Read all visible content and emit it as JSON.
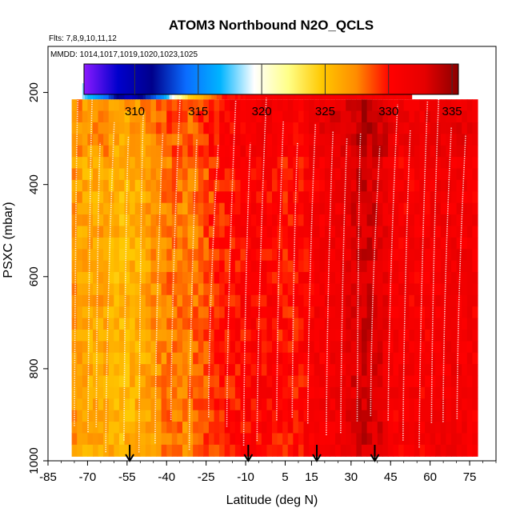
{
  "chart_data": {
    "type": "heatmap",
    "title": "ATOM3 Northbound N2O_QCLS",
    "flights_label": "Flts: 7,8,9,10,11,12",
    "dates_label": "MMDD: 1014,1017,1019,1020,1023,1025",
    "xlabel": "Latitude (deg N)",
    "ylabel": "PSXC (mbar)",
    "xlim": [
      -85,
      85
    ],
    "ylim": [
      1000,
      100
    ],
    "x_ticks": [
      -85,
      -70,
      -55,
      -40,
      -25,
      -10,
      5,
      15,
      30,
      45,
      60,
      75
    ],
    "x_tick_labels": [
      "-85",
      "-70",
      "-55",
      "-40",
      "-25",
      "-10",
      "5",
      "15",
      "30",
      "45",
      "60",
      "75"
    ],
    "y_ticks": [
      1000,
      800,
      600,
      400,
      200
    ],
    "y_tick_labels": [
      "1000",
      "800",
      "600",
      "400",
      "200"
    ],
    "colorbar": {
      "range": [
        306,
        335.5
      ],
      "ticks": [
        310,
        315,
        320,
        325,
        330,
        335
      ],
      "tick_labels": [
        "310",
        "315",
        "320",
        "325",
        "330",
        "335"
      ],
      "colors": [
        "#8b1aff",
        "#0000cc",
        "#00008b",
        "#0a6cff",
        "#00b4ff",
        "#ffffff",
        "#ffff88",
        "#ffc800",
        "#ff8c00",
        "#ff0000",
        "#e60000",
        "#8b0000"
      ]
    },
    "flight_markers_lat": [
      -54,
      -9,
      17,
      39
    ],
    "field": {
      "lat_range": [
        -76,
        78
      ],
      "pressure_range": [
        215,
        990
      ],
      "upper_extension": {
        "lat_range": [
          -72,
          53
        ],
        "pressure_range": [
          180,
          215
        ]
      },
      "lat_value_profile": [
        [
          -76,
          327
        ],
        [
          -70,
          326
        ],
        [
          -64,
          326.5
        ],
        [
          -58,
          325.5
        ],
        [
          -50,
          326
        ],
        [
          -44,
          327
        ],
        [
          -38,
          328
        ],
        [
          -32,
          327.5
        ],
        [
          -26,
          328.5
        ],
        [
          -20,
          329.5
        ],
        [
          -14,
          330
        ],
        [
          -8,
          330.5
        ],
        [
          -2,
          330.5
        ],
        [
          4,
          330
        ],
        [
          10,
          330
        ],
        [
          16,
          331
        ],
        [
          22,
          331.5
        ],
        [
          28,
          332
        ],
        [
          34,
          333.5
        ],
        [
          40,
          333
        ],
        [
          46,
          331
        ],
        [
          52,
          331
        ],
        [
          58,
          331
        ],
        [
          64,
          331.5
        ],
        [
          70,
          331.5
        ],
        [
          78,
          331
        ]
      ],
      "upper_band_profile": [
        [
          -72,
          318
        ],
        [
          -66,
          316
        ],
        [
          -60,
          312
        ],
        [
          -54,
          309
        ],
        [
          -48,
          312
        ],
        [
          -42,
          315
        ],
        [
          -36,
          321
        ],
        [
          -30,
          325
        ],
        [
          -24,
          327
        ],
        [
          -18,
          330
        ],
        [
          -10,
          330
        ],
        [
          0,
          331
        ],
        [
          20,
          331
        ],
        [
          53,
          331
        ]
      ]
    }
  }
}
